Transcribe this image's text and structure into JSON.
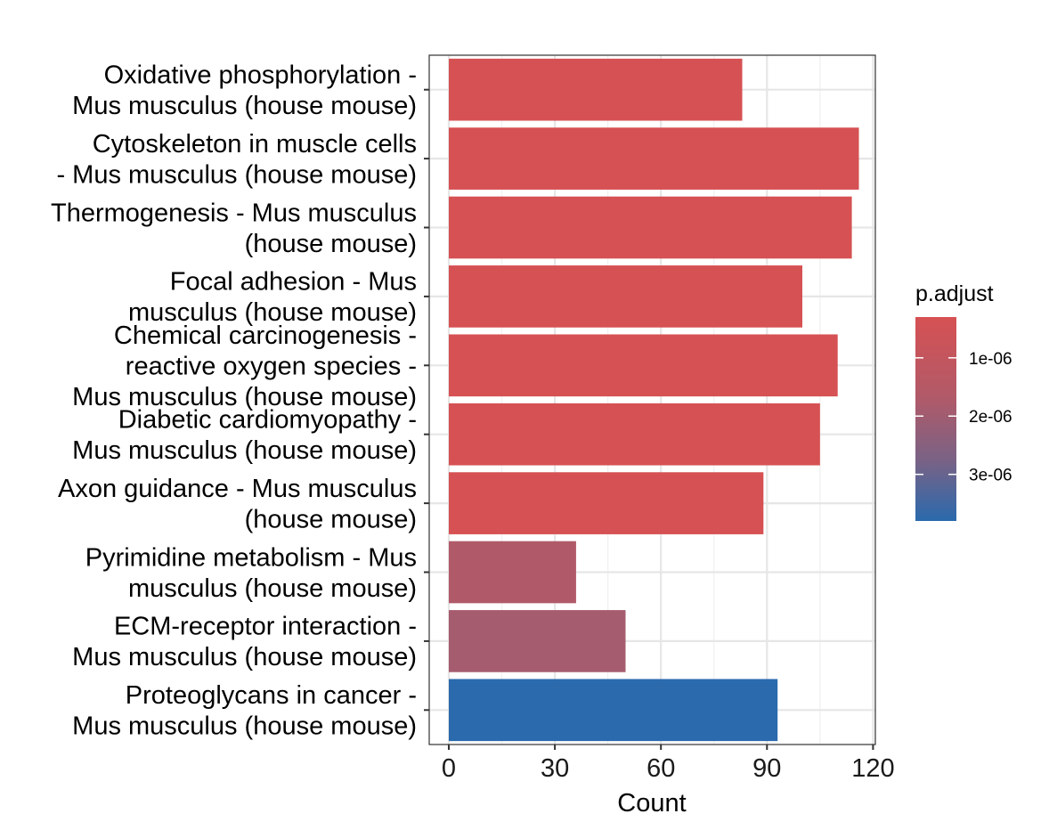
{
  "chart_data": {
    "type": "bar",
    "orientation": "horizontal",
    "xlabel": "Count",
    "ylabel": "",
    "xlim": [
      0,
      120
    ],
    "xticks": [
      0,
      30,
      60,
      90,
      120
    ],
    "grid": true,
    "legend": {
      "title": "p.adjust",
      "placement": "right",
      "type": "colorbar",
      "ticks": [
        "1e-06",
        "2e-06",
        "3e-06"
      ],
      "range": [
        3e-07,
        3.8e-06
      ],
      "color_low": "#d65153",
      "color_high": "#2a6aad"
    },
    "categories": [
      {
        "lines": [
          "Oxidative phosphorylation -",
          "Mus musculus (house mouse)"
        ],
        "value": 83,
        "p_adjust": 1e-08,
        "color": "#d65153"
      },
      {
        "lines": [
          "Cytoskeleton in muscle cells",
          "- Mus musculus (house mouse)"
        ],
        "value": 116,
        "p_adjust": 1e-08,
        "color": "#d65153"
      },
      {
        "lines": [
          "Thermogenesis - Mus musculus",
          "(house mouse)"
        ],
        "value": 114,
        "p_adjust": 1e-08,
        "color": "#d65153"
      },
      {
        "lines": [
          "Focal adhesion - Mus",
          "musculus (house mouse)"
        ],
        "value": 100,
        "p_adjust": 1e-08,
        "color": "#d65153"
      },
      {
        "lines": [
          "Chemical carcinogenesis -",
          "reactive oxygen species -",
          "Mus musculus (house mouse)"
        ],
        "value": 110,
        "p_adjust": 1e-08,
        "color": "#d65153"
      },
      {
        "lines": [
          "Diabetic cardiomyopathy -",
          "Mus musculus (house mouse)"
        ],
        "value": 105,
        "p_adjust": 1e-08,
        "color": "#d65153"
      },
      {
        "lines": [
          "Axon guidance - Mus musculus",
          "(house mouse)"
        ],
        "value": 89,
        "p_adjust": 1e-08,
        "color": "#d65153"
      },
      {
        "lines": [
          "Pyrimidine metabolism - Mus",
          "musculus (house mouse)"
        ],
        "value": 36,
        "p_adjust": 1e-06,
        "color": "#b05a69"
      },
      {
        "lines": [
          "ECM-receptor interaction -",
          "Mus musculus (house mouse)"
        ],
        "value": 50,
        "p_adjust": 1.3e-06,
        "color": "#a65c6f"
      },
      {
        "lines": [
          "Proteoglycans in cancer -",
          "Mus musculus (house mouse)"
        ],
        "value": 93,
        "p_adjust": 3.8e-06,
        "color": "#2a6aad"
      }
    ]
  }
}
